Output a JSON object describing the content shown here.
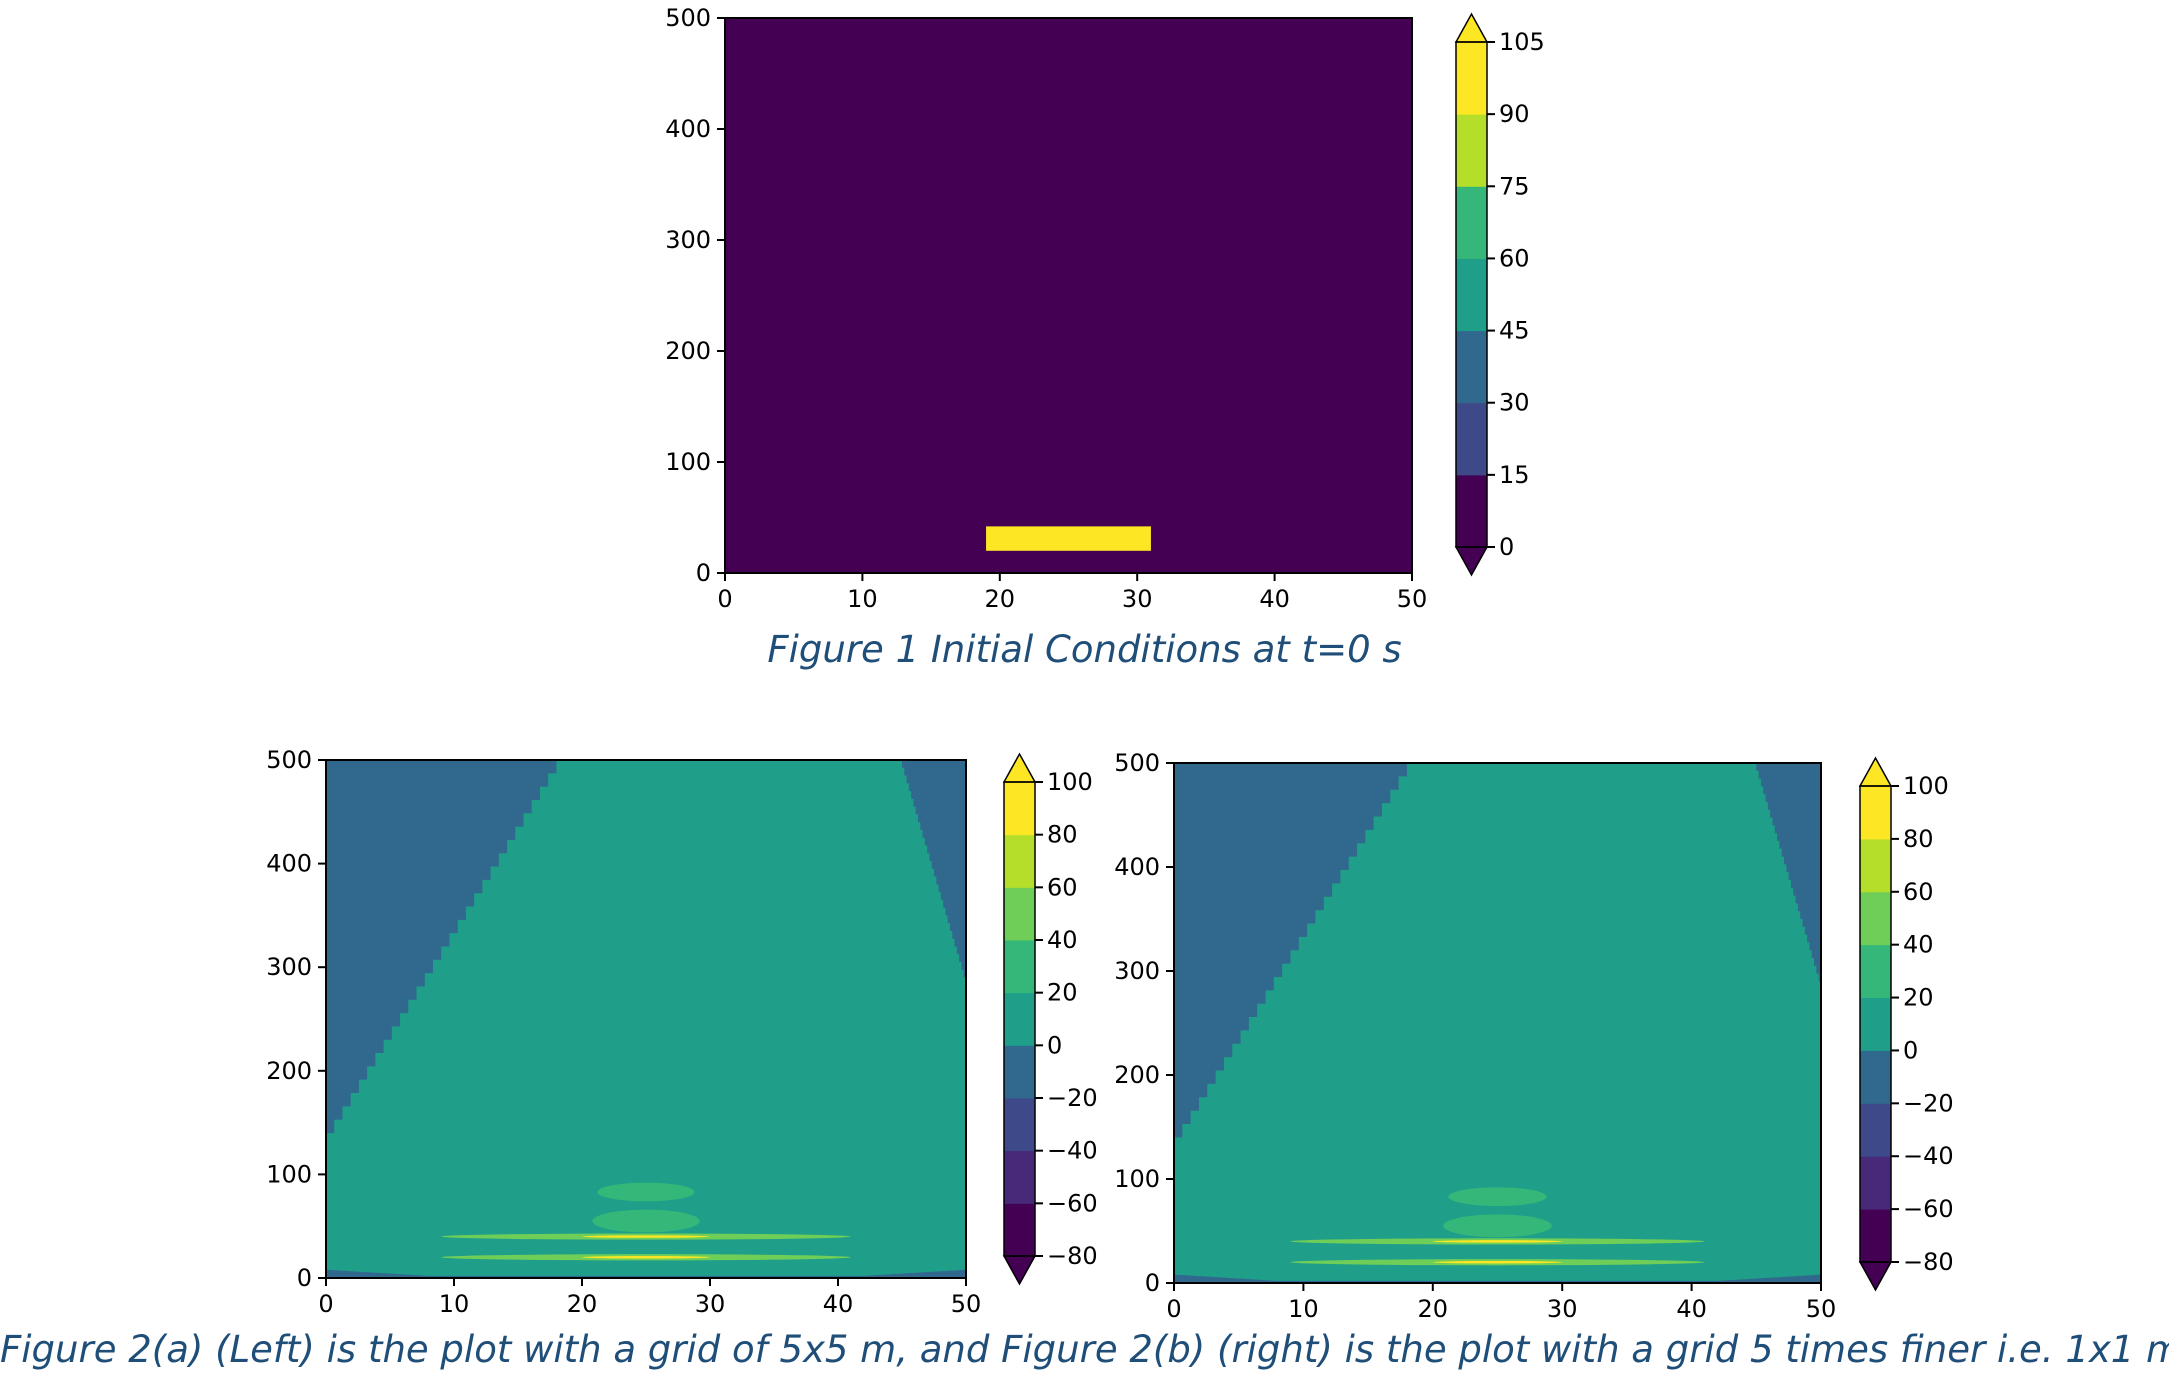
{
  "captions": {
    "figure1": "Figure 1 Initial Conditions at t=0 s",
    "figure2": "Figure 2(a) (Left) is the plot with a grid of 5x5 m, and Figure 2(b) (right) is the plot with a grid 5 times finer i.e. 1x1 m"
  },
  "colors": {
    "viridis": [
      "#440154",
      "#482878",
      "#3e4989",
      "#31688e",
      "#26828e",
      "#1f9e89",
      "#35b779",
      "#6ece58",
      "#b5de2b",
      "#fde725"
    ],
    "fig1_background": "#440154",
    "fig1_rect": "#d2e21b",
    "fig2_field": "#21908d",
    "fig2_corner": "#2b6f8e"
  },
  "chart_data": [
    {
      "id": "fig1",
      "type": "heatmap",
      "xlim": [
        0,
        50
      ],
      "ylim": [
        0,
        500
      ],
      "x_ticks": [
        "0",
        "10",
        "20",
        "30",
        "40",
        "50"
      ],
      "y_ticks": [
        "0",
        "100",
        "200",
        "300",
        "400",
        "500"
      ],
      "colorbar": {
        "levels": [
          0,
          15,
          30,
          45,
          60,
          75,
          90,
          105
        ],
        "ticks": [
          "0",
          "15",
          "30",
          "45",
          "60",
          "75",
          "90",
          "105"
        ],
        "extend": "both"
      },
      "background_value": 0,
      "features": [
        {
          "kind": "rect",
          "x": [
            19,
            31
          ],
          "y": [
            20,
            42
          ],
          "value": 100
        }
      ]
    },
    {
      "id": "fig2a",
      "type": "heatmap",
      "xlim": [
        0,
        50
      ],
      "ylim": [
        0,
        500
      ],
      "x_ticks": [
        "0",
        "10",
        "20",
        "30",
        "40",
        "50"
      ],
      "y_ticks": [
        "0",
        "100",
        "200",
        "300",
        "400",
        "500"
      ],
      "colorbar": {
        "levels": [
          -80,
          -60,
          -40,
          -20,
          0,
          20,
          40,
          60,
          80,
          100
        ],
        "ticks": [
          "−80",
          "−60",
          "−40",
          "−20",
          "0",
          "20",
          "40",
          "60",
          "80",
          "100"
        ],
        "extend": "both"
      },
      "background_value": 10,
      "features": [
        {
          "kind": "left-corner",
          "value": -10,
          "top_x": 18,
          "bottom_y": 140
        },
        {
          "kind": "right-corner",
          "value": -10,
          "top_x": 45,
          "bottom_y": 290
        },
        {
          "kind": "ellipse",
          "cx": 25,
          "cy": 83,
          "rx": 3.8,
          "ry": 9,
          "value": 30
        },
        {
          "kind": "ellipse",
          "cx": 25,
          "cy": 55,
          "rx": 4.2,
          "ry": 11,
          "value": 30
        },
        {
          "kind": "band",
          "cx": 25,
          "cy": 40,
          "rx": 16,
          "ry": 3,
          "value": 50
        },
        {
          "kind": "band",
          "cx": 25,
          "cy": 20,
          "rx": 16,
          "ry": 3,
          "value": 50
        },
        {
          "kind": "band",
          "cx": 25,
          "cy": 40,
          "rx": 5,
          "ry": 1.2,
          "value": 90
        },
        {
          "kind": "band",
          "cx": 25,
          "cy": 20,
          "rx": 5,
          "ry": 1.2,
          "value": 90
        }
      ]
    },
    {
      "id": "fig2b",
      "type": "heatmap",
      "xlim": [
        0,
        50
      ],
      "ylim": [
        0,
        500
      ],
      "x_ticks": [
        "0",
        "10",
        "20",
        "30",
        "40",
        "50"
      ],
      "y_ticks": [
        "0",
        "100",
        "200",
        "300",
        "400",
        "500"
      ],
      "colorbar": {
        "levels": [
          -80,
          -60,
          -40,
          -20,
          0,
          20,
          40,
          60,
          80,
          100
        ],
        "ticks": [
          "−80",
          "−60",
          "−40",
          "−20",
          "0",
          "20",
          "40",
          "60",
          "80",
          "100"
        ],
        "extend": "both"
      },
      "background_value": 10,
      "features": [
        {
          "kind": "left-corner",
          "value": -10,
          "top_x": 18,
          "bottom_y": 140
        },
        {
          "kind": "right-corner",
          "value": -10,
          "top_x": 45,
          "bottom_y": 290
        },
        {
          "kind": "ellipse",
          "cx": 25,
          "cy": 83,
          "rx": 3.8,
          "ry": 9,
          "value": 30
        },
        {
          "kind": "ellipse",
          "cx": 25,
          "cy": 55,
          "rx": 4.2,
          "ry": 11,
          "value": 30
        },
        {
          "kind": "band",
          "cx": 25,
          "cy": 40,
          "rx": 16,
          "ry": 3,
          "value": 50
        },
        {
          "kind": "band",
          "cx": 25,
          "cy": 20,
          "rx": 16,
          "ry": 3,
          "value": 50
        },
        {
          "kind": "band",
          "cx": 25,
          "cy": 40,
          "rx": 5,
          "ry": 1.2,
          "value": 90
        },
        {
          "kind": "band",
          "cx": 25,
          "cy": 20,
          "rx": 5,
          "ry": 1.2,
          "value": 90
        }
      ]
    }
  ]
}
